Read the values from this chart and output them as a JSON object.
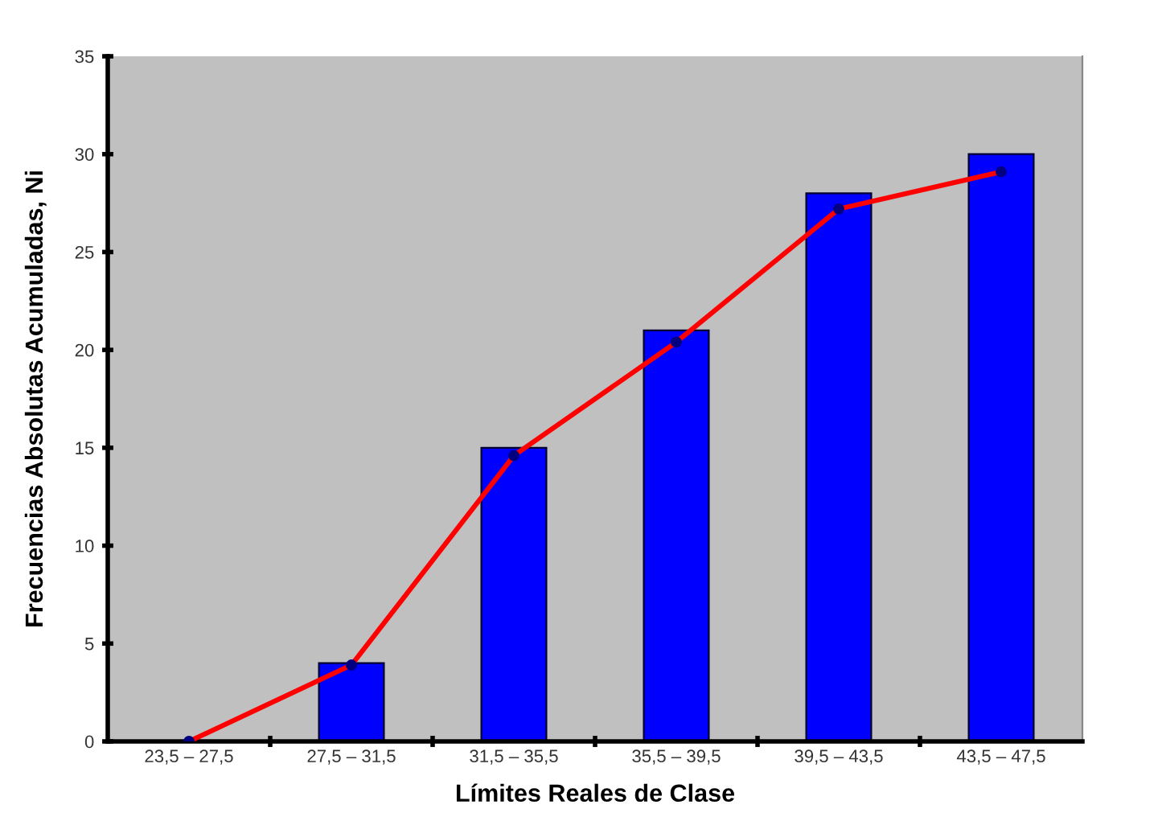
{
  "chart_data": {
    "type": "bar",
    "xlabel": "Límites Reales de Clase",
    "ylabel": "Frecuencias Absolutas Acumuladas, Ni",
    "categories": [
      "23,5 – 27,5",
      "27,5 – 31,5",
      "31,5 – 35,5",
      "35,5 – 39,5",
      "39,5 – 43,5",
      "43,5 – 47,5"
    ],
    "series": [
      {
        "color": "#0000ff",
        "values": [
          0,
          4,
          15,
          21,
          28,
          30
        ]
      },
      {
        "type": "line",
        "color": "#ff0000",
        "marker": "circle",
        "values": [
          0,
          3.9,
          14.6,
          20.4,
          27.2,
          29.1
        ]
      }
    ],
    "ylim": [
      0,
      35
    ],
    "yticks": [
      0,
      5,
      10,
      15,
      20,
      25,
      30,
      35
    ],
    "grid": false,
    "legend": false
  }
}
